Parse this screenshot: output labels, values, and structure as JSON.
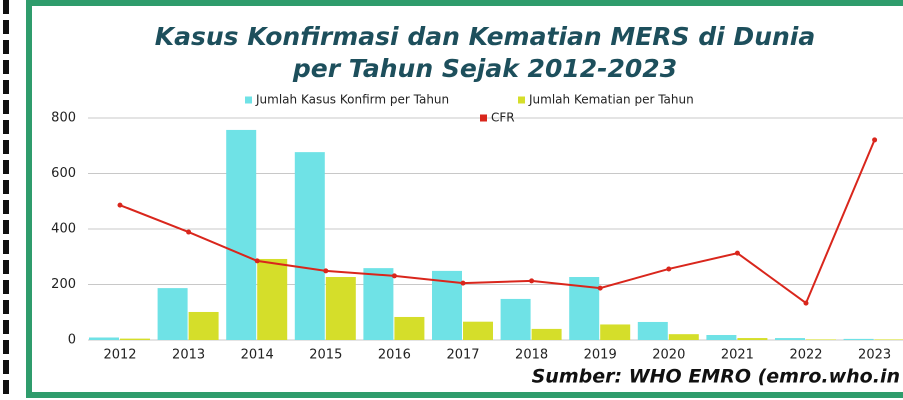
{
  "chart_data": {
    "type": "bar_line",
    "title": [
      "Kasus Konfirmasi dan Kematian MERS di Dunia",
      "per Tahun Sejak 2012-2023"
    ],
    "source": "Sumber: WHO EMRO (emro.who.in",
    "categories": [
      "2012",
      "2013",
      "2014",
      "2015",
      "2016",
      "2017",
      "2018",
      "2019",
      "2020",
      "2021",
      "2022",
      "2023"
    ],
    "series": [
      {
        "name": "Jumlah Kasus Konfirm per Tahun",
        "color": "#6fe2e6",
        "kind": "bar",
        "values": [
          9,
          187,
          757,
          677,
          259,
          249,
          148,
          227,
          65,
          18,
          7,
          4
        ]
      },
      {
        "name": "Jumlah Kematian per Tahun",
        "color": "#d5de2a",
        "kind": "bar",
        "values": [
          5,
          101,
          292,
          227,
          83,
          66,
          40,
          56,
          21,
          7,
          2,
          2
        ]
      },
      {
        "name": "CFR",
        "color": "#d9261c",
        "kind": "line",
        "values": [
          486,
          389,
          285,
          249,
          231,
          205,
          213,
          187,
          256,
          313,
          133,
          721
        ]
      }
    ],
    "ylim": [
      0,
      800
    ],
    "yticks": [
      0,
      200,
      400,
      600,
      800
    ],
    "grid": true
  }
}
